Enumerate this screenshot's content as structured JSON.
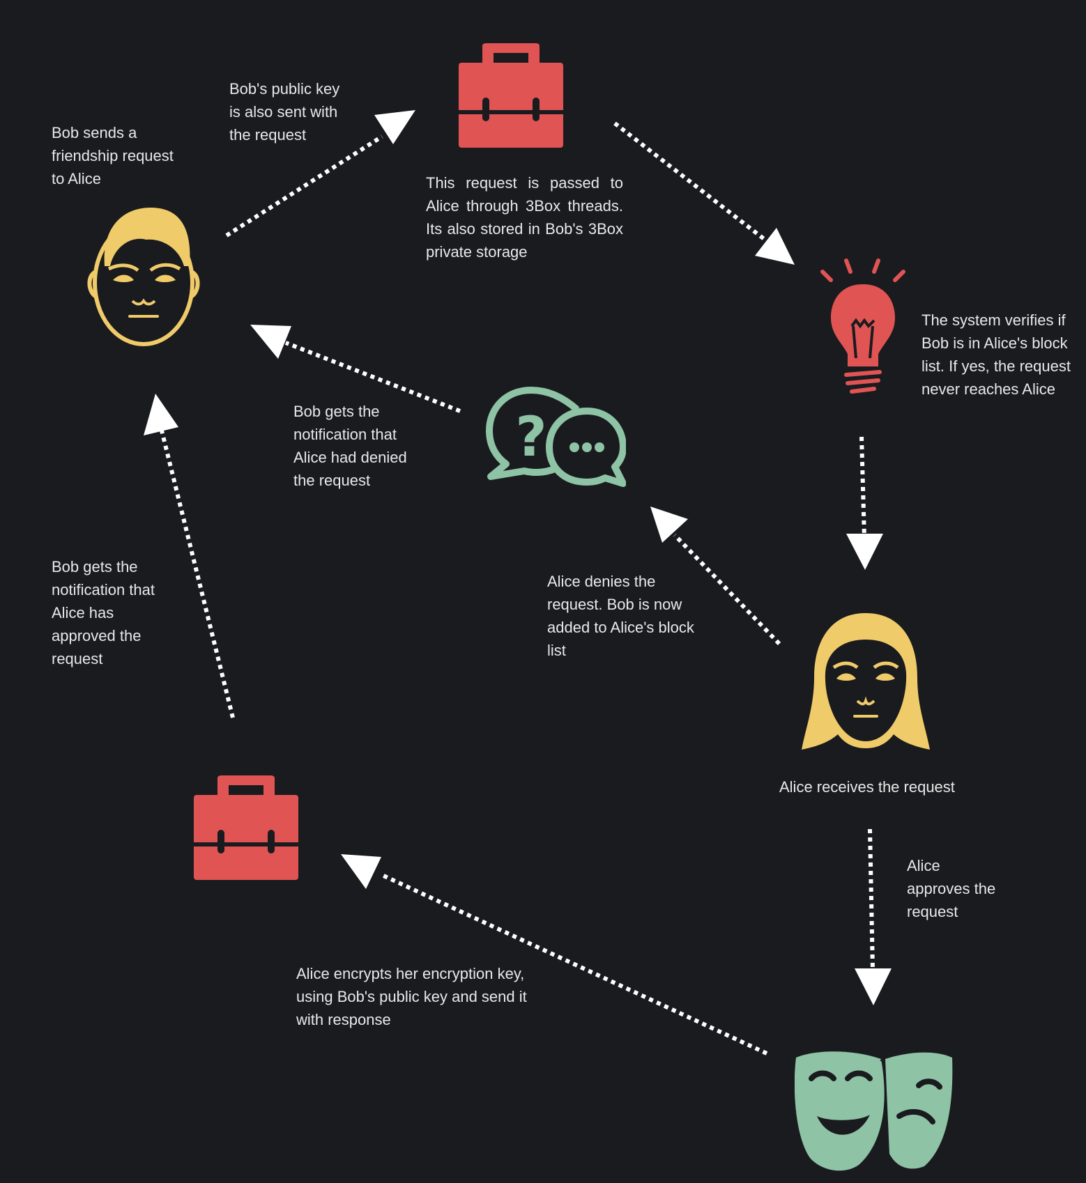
{
  "colors": {
    "background": "#1a1b1f",
    "text": "#e9e9e9",
    "arrow": "#ffffff",
    "person": "#f0cb6a",
    "red": "#e05454",
    "green": "#8ec3a5"
  },
  "icons": {
    "bob": "man-face-icon",
    "alice": "woman-face-icon",
    "briefcase_top": "briefcase-icon",
    "briefcase_bottom": "briefcase-icon",
    "bulb": "lightbulb-icon",
    "chat": "chat-bubbles-icon",
    "masks": "theater-masks-icon"
  },
  "labels": {
    "bob_sends": "Bob sends a\nfriendship request\nto Alice",
    "public_key": "Bob's public key\nis also sent with\nthe request",
    "passed": "This request is passed to Alice through 3Box threads. Its also stored in Bob's 3Box private storage",
    "verifies": "The system verifies if\nBob is in Alice's block\nlist. If yes, the request\nnever reaches Alice",
    "denied_notify": "Bob gets the\nnotification that\nAlice had denied\nthe request",
    "approved_notify": "Bob gets the\nnotification that\nAlice has\napproved the\nrequest",
    "alice_denies": "Alice  denies the\nrequest. Bob is now\nadded to Alice's block\nlist",
    "alice_receives": "Alice  receives the request",
    "alice_approves": "Alice\napproves the\nrequest",
    "alice_encrypts": "Alice  encrypts her encryption key,\nusing Bob's public key and send it\nwith response"
  }
}
